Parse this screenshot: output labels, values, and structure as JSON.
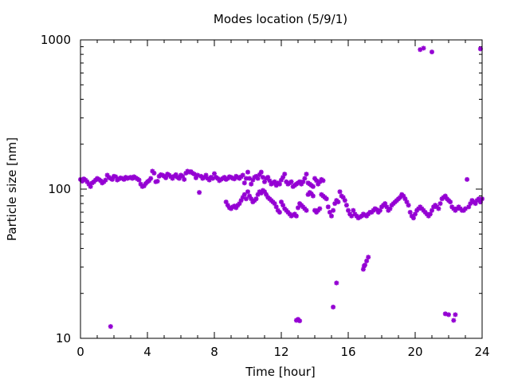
{
  "chart_data": {
    "type": "scatter",
    "title": "Modes location (5/9/1)",
    "xlabel": "Time [hour]",
    "ylabel": "Particle size [nm]",
    "xlim": [
      0,
      24
    ],
    "ylim": [
      10,
      1000
    ],
    "y_scale": "log",
    "grid": false,
    "legend": "none",
    "marker_color": "#9400d3",
    "x_ticks": [
      0,
      4,
      8,
      12,
      16,
      20,
      24
    ],
    "x_tick_labels": [
      "0",
      "4",
      "8",
      "12",
      "16",
      "20",
      "24"
    ],
    "y_ticks": [
      10,
      100,
      1000
    ],
    "y_tick_labels": [
      "10",
      "100",
      "1000"
    ],
    "series": [
      {
        "points": [
          [
            0.0,
            116
          ],
          [
            0.1,
            113
          ],
          [
            0.2,
            117
          ],
          [
            0.3,
            115
          ],
          [
            0.4,
            112
          ],
          [
            0.5,
            108
          ],
          [
            0.6,
            104
          ],
          [
            0.7,
            110
          ],
          [
            0.8,
            112
          ],
          [
            0.9,
            115
          ],
          [
            1.0,
            118
          ],
          [
            1.1,
            116
          ],
          [
            1.2,
            114
          ],
          [
            1.3,
            110
          ],
          [
            1.4,
            112
          ],
          [
            1.5,
            115
          ],
          [
            1.6,
            124
          ],
          [
            1.7,
            120
          ],
          [
            1.8,
            118
          ],
          [
            1.9,
            116
          ],
          [
            2.0,
            122
          ],
          [
            2.1,
            121
          ],
          [
            2.2,
            115
          ],
          [
            2.3,
            117
          ],
          [
            2.4,
            119
          ],
          [
            2.5,
            118
          ],
          [
            2.6,
            116
          ],
          [
            2.7,
            120
          ],
          [
            2.8,
            118
          ],
          [
            2.9,
            119
          ],
          [
            3.0,
            120
          ],
          [
            3.1,
            118
          ],
          [
            3.2,
            121
          ],
          [
            3.3,
            119
          ],
          [
            3.4,
            117
          ],
          [
            3.5,
            115
          ],
          [
            3.6,
            108
          ],
          [
            3.7,
            104
          ],
          [
            3.8,
            105
          ],
          [
            3.9,
            109
          ],
          [
            4.0,
            112
          ],
          [
            4.1,
            114
          ],
          [
            4.2,
            118
          ],
          [
            4.3,
            132
          ],
          [
            4.4,
            128
          ],
          [
            4.5,
            112
          ],
          [
            4.6,
            113
          ],
          [
            4.7,
            122
          ],
          [
            4.8,
            125
          ],
          [
            4.9,
            124
          ],
          [
            5.0,
            122
          ],
          [
            5.1,
            119
          ],
          [
            5.2,
            126
          ],
          [
            5.3,
            124
          ],
          [
            5.4,
            121
          ],
          [
            5.5,
            118
          ],
          [
            5.6,
            122
          ],
          [
            5.7,
            125
          ],
          [
            5.8,
            120
          ],
          [
            5.9,
            118
          ],
          [
            6.0,
            124
          ],
          [
            6.1,
            122
          ],
          [
            6.2,
            116
          ],
          [
            6.3,
            128
          ],
          [
            6.4,
            132
          ],
          [
            6.5,
            130
          ],
          [
            6.6,
            131
          ],
          [
            6.7,
            128
          ],
          [
            6.8,
            126
          ],
          [
            6.9,
            119
          ],
          [
            7.0,
            124
          ],
          [
            7.1,
            95
          ],
          [
            7.2,
            122
          ],
          [
            7.3,
            118
          ],
          [
            7.4,
            120
          ],
          [
            7.5,
            124
          ],
          [
            7.6,
            118
          ],
          [
            7.7,
            115
          ],
          [
            7.8,
            120
          ],
          [
            7.9,
            118
          ],
          [
            8.0,
            127
          ],
          [
            8.1,
            120
          ],
          [
            8.2,
            118
          ],
          [
            8.3,
            114
          ],
          [
            8.4,
            116
          ],
          [
            8.5,
            118
          ],
          [
            8.6,
            120
          ],
          [
            8.7,
            116
          ],
          [
            8.8,
            118
          ],
          [
            8.9,
            121
          ],
          [
            9.0,
            120
          ],
          [
            9.1,
            118
          ],
          [
            9.2,
            117
          ],
          [
            9.3,
            122
          ],
          [
            9.4,
            120
          ],
          [
            9.5,
            118
          ],
          [
            9.6,
            121
          ],
          [
            9.7,
            124
          ],
          [
            9.8,
            110
          ],
          [
            9.9,
            118
          ],
          [
            10.0,
            130
          ],
          [
            10.1,
            118
          ],
          [
            10.2,
            108
          ],
          [
            10.3,
            115
          ],
          [
            10.4,
            120
          ],
          [
            10.5,
            122
          ],
          [
            10.6,
            118
          ],
          [
            10.7,
            125
          ],
          [
            10.8,
            130
          ],
          [
            10.9,
            120
          ],
          [
            11.0,
            112
          ],
          [
            11.1,
            118
          ],
          [
            11.2,
            120
          ],
          [
            11.3,
            114
          ],
          [
            11.4,
            108
          ],
          [
            11.5,
            110
          ],
          [
            11.6,
            112
          ],
          [
            11.7,
            106
          ],
          [
            11.8,
            110
          ],
          [
            11.9,
            108
          ],
          [
            12.0,
            115
          ],
          [
            12.1,
            120
          ],
          [
            12.2,
            126
          ],
          [
            12.3,
            112
          ],
          [
            12.4,
            108
          ],
          [
            12.5,
            110
          ],
          [
            12.6,
            112
          ],
          [
            12.7,
            104
          ],
          [
            12.8,
            106
          ],
          [
            12.9,
            108
          ],
          [
            13.0,
            110
          ],
          [
            13.1,
            112
          ],
          [
            13.2,
            108
          ],
          [
            13.3,
            112
          ],
          [
            13.4,
            118
          ],
          [
            13.5,
            126
          ],
          [
            13.6,
            110
          ],
          [
            13.7,
            108
          ],
          [
            13.8,
            106
          ],
          [
            13.9,
            104
          ],
          [
            14.0,
            118
          ],
          [
            14.1,
            114
          ],
          [
            14.2,
            108
          ],
          [
            14.3,
            112
          ],
          [
            14.4,
            116
          ],
          [
            14.5,
            114
          ],
          [
            8.7,
            82
          ],
          [
            8.8,
            78
          ],
          [
            8.9,
            75
          ],
          [
            9.0,
            74
          ],
          [
            9.1,
            76
          ],
          [
            9.2,
            77
          ],
          [
            9.3,
            75
          ],
          [
            9.4,
            78
          ],
          [
            9.5,
            80
          ],
          [
            9.6,
            84
          ],
          [
            9.7,
            88
          ],
          [
            9.8,
            92
          ],
          [
            9.9,
            86
          ],
          [
            10.0,
            96
          ],
          [
            10.1,
            90
          ],
          [
            10.2,
            86
          ],
          [
            10.3,
            82
          ],
          [
            10.4,
            84
          ],
          [
            10.5,
            86
          ],
          [
            10.6,
            92
          ],
          [
            10.7,
            96
          ],
          [
            10.8,
            94
          ],
          [
            10.9,
            98
          ],
          [
            11.0,
            96
          ],
          [
            11.1,
            92
          ],
          [
            11.2,
            88
          ],
          [
            11.3,
            86
          ],
          [
            11.4,
            84
          ],
          [
            11.5,
            82
          ],
          [
            11.6,
            80
          ],
          [
            11.7,
            76
          ],
          [
            11.8,
            72
          ],
          [
            11.9,
            70
          ],
          [
            12.0,
            82
          ],
          [
            12.1,
            78
          ],
          [
            12.2,
            74
          ],
          [
            12.3,
            72
          ],
          [
            12.4,
            70
          ],
          [
            12.5,
            68
          ],
          [
            12.6,
            66
          ],
          [
            12.7,
            67
          ],
          [
            12.8,
            68
          ],
          [
            12.9,
            66
          ],
          [
            13.0,
            75
          ],
          [
            13.1,
            80
          ],
          [
            13.2,
            78
          ],
          [
            13.3,
            76
          ],
          [
            13.4,
            74
          ],
          [
            13.5,
            72
          ],
          [
            13.6,
            92
          ],
          [
            13.7,
            95
          ],
          [
            13.8,
            93
          ],
          [
            13.9,
            90
          ],
          [
            14.0,
            72
          ],
          [
            14.1,
            70
          ],
          [
            14.2,
            72
          ],
          [
            14.3,
            74
          ],
          [
            14.4,
            92
          ],
          [
            14.5,
            90
          ],
          [
            14.6,
            88
          ],
          [
            14.7,
            86
          ],
          [
            14.8,
            76
          ],
          [
            14.9,
            70
          ],
          [
            15.0,
            66
          ],
          [
            15.1,
            72
          ],
          [
            15.2,
            80
          ],
          [
            15.3,
            84
          ],
          [
            15.4,
            82
          ],
          [
            15.5,
            96
          ],
          [
            15.6,
            90
          ],
          [
            15.7,
            88
          ],
          [
            15.8,
            84
          ],
          [
            15.9,
            78
          ],
          [
            16.0,
            72
          ],
          [
            16.1,
            68
          ],
          [
            16.2,
            66
          ],
          [
            16.3,
            72
          ],
          [
            16.4,
            68
          ],
          [
            16.5,
            66
          ],
          [
            16.6,
            64
          ],
          [
            16.7,
            65
          ],
          [
            16.8,
            66
          ],
          [
            16.9,
            68
          ],
          [
            17.0,
            67
          ],
          [
            17.1,
            66
          ],
          [
            17.2,
            68
          ],
          [
            17.3,
            70
          ],
          [
            17.4,
            70
          ],
          [
            17.5,
            72
          ],
          [
            17.6,
            74
          ],
          [
            17.7,
            73
          ],
          [
            17.8,
            70
          ],
          [
            17.9,
            72
          ],
          [
            18.0,
            76
          ],
          [
            18.1,
            78
          ],
          [
            18.2,
            80
          ],
          [
            18.3,
            76
          ],
          [
            18.4,
            72
          ],
          [
            18.5,
            74
          ],
          [
            18.6,
            78
          ],
          [
            18.7,
            80
          ],
          [
            18.8,
            82
          ],
          [
            18.9,
            84
          ],
          [
            19.0,
            86
          ],
          [
            19.1,
            88
          ],
          [
            19.2,
            92
          ],
          [
            19.3,
            90
          ],
          [
            19.4,
            86
          ],
          [
            19.5,
            82
          ],
          [
            19.6,
            78
          ],
          [
            19.7,
            70
          ],
          [
            19.8,
            66
          ],
          [
            19.9,
            64
          ],
          [
            20.0,
            68
          ],
          [
            20.1,
            72
          ],
          [
            20.2,
            74
          ],
          [
            20.3,
            76
          ],
          [
            20.4,
            74
          ],
          [
            20.5,
            72
          ],
          [
            20.6,
            70
          ],
          [
            20.7,
            68
          ],
          [
            20.8,
            66
          ],
          [
            20.9,
            68
          ],
          [
            21.0,
            72
          ],
          [
            21.1,
            76
          ],
          [
            21.2,
            78
          ],
          [
            21.3,
            76
          ],
          [
            21.4,
            74
          ],
          [
            21.5,
            80
          ],
          [
            21.6,
            86
          ],
          [
            21.7,
            88
          ],
          [
            21.8,
            90
          ],
          [
            21.9,
            86
          ],
          [
            22.0,
            84
          ],
          [
            22.1,
            82
          ],
          [
            22.2,
            76
          ],
          [
            22.3,
            74
          ],
          [
            22.4,
            72
          ],
          [
            22.5,
            74
          ],
          [
            22.6,
            76
          ],
          [
            22.7,
            74
          ],
          [
            22.8,
            72
          ],
          [
            22.9,
            72
          ],
          [
            23.0,
            74
          ],
          [
            23.1,
            116
          ],
          [
            23.2,
            76
          ],
          [
            23.3,
            80
          ],
          [
            23.4,
            84
          ],
          [
            23.5,
            82
          ],
          [
            23.6,
            80
          ],
          [
            23.7,
            84
          ],
          [
            23.8,
            86
          ],
          [
            23.9,
            82
          ],
          [
            24.0,
            86
          ],
          [
            1.8,
            12
          ],
          [
            12.9,
            13.2
          ],
          [
            13.0,
            13.4
          ],
          [
            13.1,
            13.1
          ],
          [
            15.1,
            16.2
          ],
          [
            15.3,
            23.5
          ],
          [
            16.9,
            29
          ],
          [
            17.0,
            31
          ],
          [
            17.1,
            33
          ],
          [
            17.2,
            35
          ],
          [
            16.95,
            30.5
          ],
          [
            21.8,
            14.6
          ],
          [
            22.0,
            14.4
          ],
          [
            22.3,
            13.2
          ],
          [
            22.4,
            14.4
          ],
          [
            20.3,
            860
          ],
          [
            20.5,
            880
          ],
          [
            21.0,
            830
          ],
          [
            23.9,
            870
          ]
        ]
      }
    ]
  }
}
